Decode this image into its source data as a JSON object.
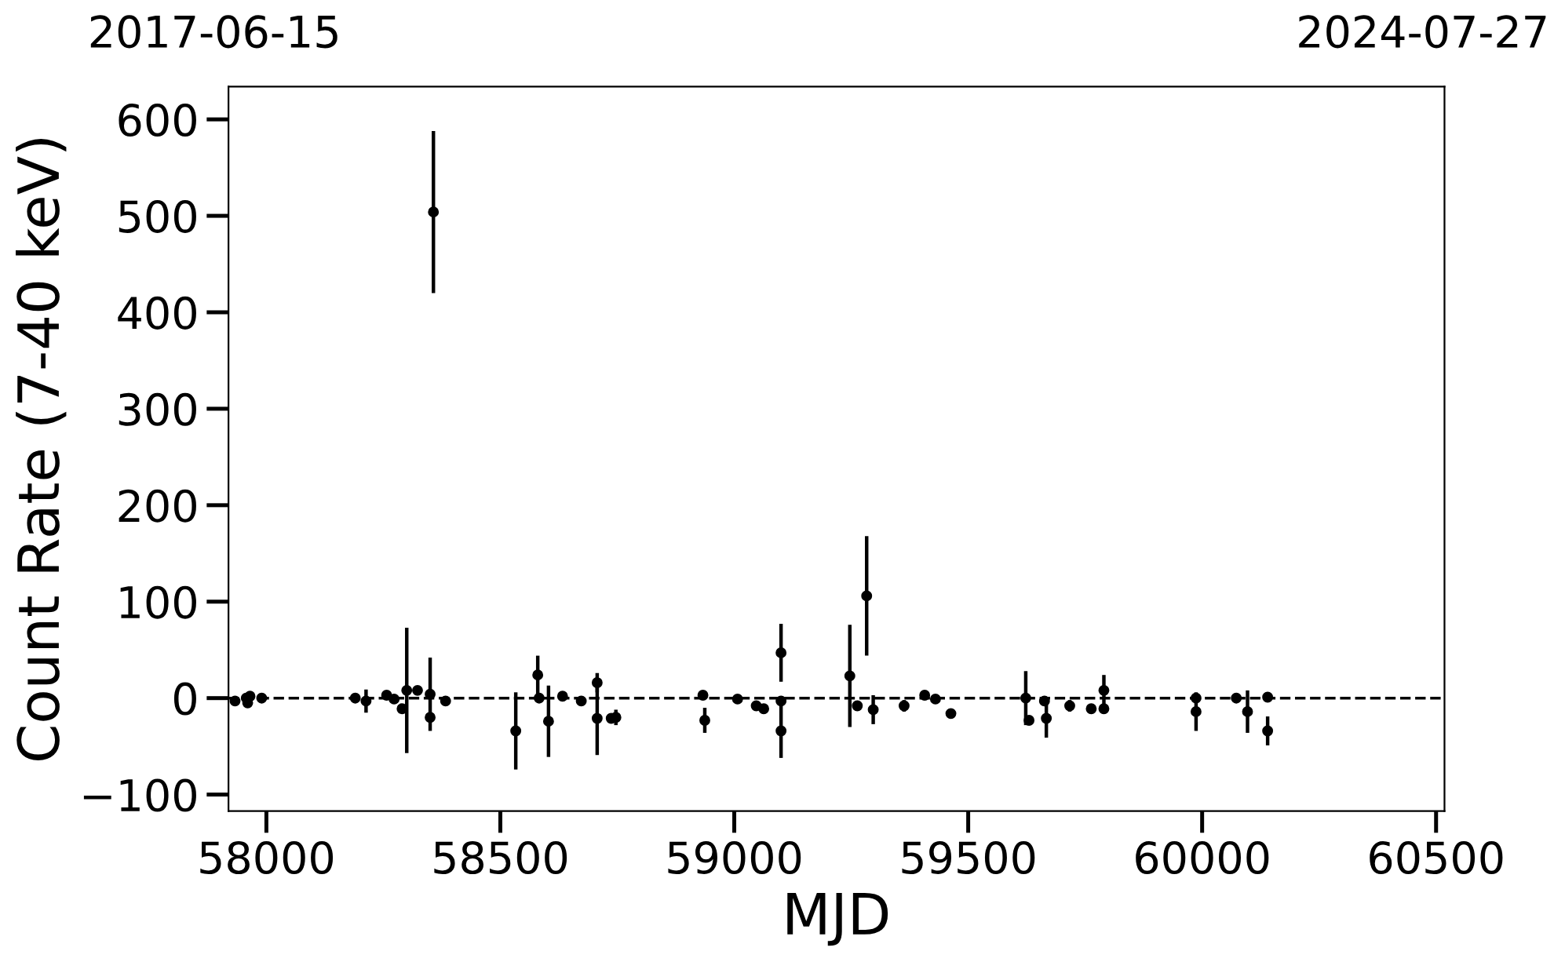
{
  "chart_data": {
    "type": "scatter",
    "xlabel": "MJD",
    "ylabel": "Count Rate (7-40 keV)",
    "xlim": [
      57919,
      60518
    ],
    "xticks": [
      58000,
      58500,
      59000,
      59500,
      60000,
      60500
    ],
    "ylim": [
      -117,
      634
    ],
    "yticks": [
      {
        "value": -100,
        "label": "−100"
      },
      0,
      100,
      200,
      300,
      400,
      500,
      600
    ],
    "annotations": [
      "2017-06-15",
      "2024-07-27"
    ],
    "marker": "circle",
    "grid": false,
    "legend": false,
    "ref_lines": [
      {
        "axis": "y",
        "value": 0,
        "color": "#000000",
        "line_style": "dashed"
      }
    ],
    "series": [
      {
        "color": "#000000",
        "x": [
          57933,
          57957,
          57960,
          57965,
          57990,
          58190,
          58213,
          58257,
          58273,
          58290,
          58300,
          58323,
          58350,
          58350,
          58357,
          58383,
          58533,
          58580,
          58583,
          58603,
          58633,
          58673,
          58707,
          58707,
          58737,
          58747,
          58933,
          58937,
          59007,
          59047,
          59063,
          59100,
          59100,
          59100,
          59247,
          59263,
          59283,
          59297,
          59363,
          59407,
          59430,
          59463,
          59623,
          59630,
          59663,
          59667,
          59717,
          59763,
          59790,
          59790,
          59987,
          59987,
          60073,
          60097,
          60140,
          60140
        ],
        "values": [
          -3,
          0,
          -5,
          2,
          0,
          0,
          -3,
          3,
          -1,
          -11,
          8,
          8,
          4,
          -20,
          504,
          -3,
          -34,
          24,
          0,
          -24,
          2,
          -3,
          16,
          -21,
          -21,
          -20,
          3,
          -23,
          -1,
          -8,
          -11,
          47,
          -3,
          -34,
          23,
          -8,
          106,
          -12,
          -8,
          3,
          -1,
          -16,
          0,
          -23,
          -3,
          -21,
          -8,
          -11,
          8,
          -11,
          -14,
          0,
          0,
          -14,
          1,
          -34
        ],
        "errors": [
          3,
          3,
          5,
          4,
          3,
          2,
          12,
          3,
          3,
          3,
          65,
          4,
          38,
          4,
          84,
          2,
          40,
          20,
          4,
          37,
          5,
          3,
          10,
          38,
          5,
          8,
          3,
          13,
          2,
          5,
          5,
          30,
          3,
          28,
          53,
          4,
          62,
          15,
          6,
          5,
          3,
          5,
          28,
          4,
          3,
          20,
          6,
          3,
          16,
          5,
          20,
          3,
          3,
          22,
          3,
          15
        ]
      }
    ]
  }
}
